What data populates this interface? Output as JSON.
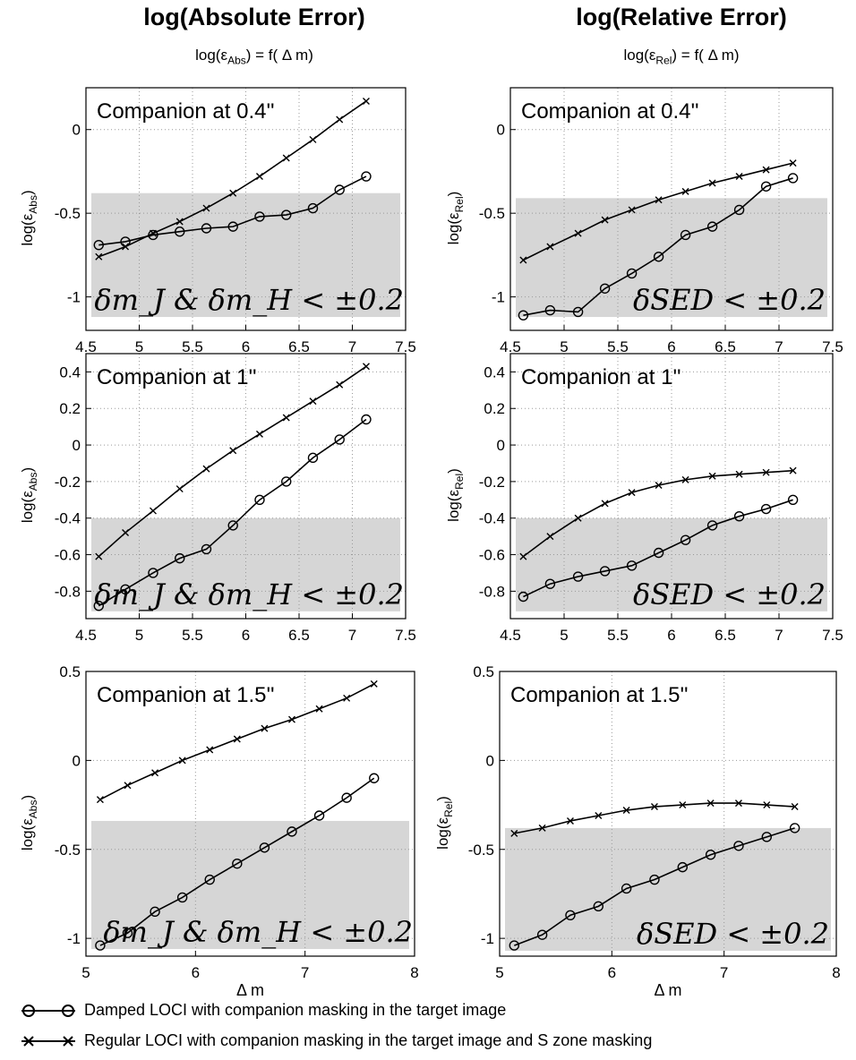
{
  "titles": {
    "left": "log(Absolute Error)",
    "right": "log(Relative Error)",
    "left_formula_pre": "log(ε",
    "left_formula_sub": "Abs",
    "left_formula_post": ") = f( Δ m)",
    "right_formula_pre": "log(ε",
    "right_formula_sub": "Rel",
    "right_formula_post": ") = f( Δ m)"
  },
  "legend": {
    "circle": "Damped LOCI with companion masking in the target image",
    "cross": "Regular LOCI with companion masking in the target image and S zone masking"
  },
  "colors": {
    "band": "#d6d6d6",
    "line": "#000000",
    "grid": "#9a9a9a"
  },
  "chart_data": [
    {
      "type": "line",
      "title": "Companion at 0.4''",
      "ylabel_pre": "log(ε",
      "ylabel_sub": "Abs",
      "ylabel_post": ")",
      "xlabel": "",
      "band_label": "δm_J & δm_H < ±0.2",
      "xlim": [
        4.5,
        7.5
      ],
      "ylim": [
        -1.2,
        0.25
      ],
      "xticks": [
        "4.5",
        "5",
        "5.5",
        "6",
        "6.5",
        "7",
        "7.5"
      ],
      "yticks": [
        "-1",
        "-0.5",
        "0"
      ],
      "band": [
        -1.12,
        -0.38
      ],
      "x": [
        4.62,
        4.87,
        5.13,
        5.38,
        5.63,
        5.88,
        6.13,
        6.38,
        6.63,
        6.88,
        7.13
      ],
      "series": [
        {
          "name": "Regular LOCI",
          "marker": "x",
          "values": [
            -0.76,
            -0.7,
            -0.62,
            -0.55,
            -0.47,
            -0.38,
            -0.28,
            -0.17,
            -0.06,
            0.06,
            0.17
          ]
        },
        {
          "name": "Damped LOCI",
          "marker": "o",
          "values": [
            -0.69,
            -0.67,
            -0.63,
            -0.61,
            -0.59,
            -0.58,
            -0.52,
            -0.51,
            -0.47,
            -0.36,
            -0.28
          ]
        }
      ]
    },
    {
      "type": "line",
      "title": "Companion at 0.4''",
      "ylabel_pre": "log(ε",
      "ylabel_sub": "Rel",
      "ylabel_post": ")",
      "xlabel": "",
      "band_label": "δSED < ±0.2",
      "xlim": [
        4.5,
        7.5
      ],
      "ylim": [
        -1.2,
        0.25
      ],
      "xticks": [
        "4.5",
        "5",
        "5.5",
        "6",
        "6.5",
        "7",
        "7.5"
      ],
      "yticks": [
        "-1",
        "-0.5",
        "0"
      ],
      "band": [
        -1.12,
        -0.41
      ],
      "x": [
        4.62,
        4.87,
        5.13,
        5.38,
        5.63,
        5.88,
        6.13,
        6.38,
        6.63,
        6.88,
        7.13
      ],
      "series": [
        {
          "name": "Regular LOCI",
          "marker": "x",
          "values": [
            -0.78,
            -0.7,
            -0.62,
            -0.54,
            -0.48,
            -0.42,
            -0.37,
            -0.32,
            -0.28,
            -0.24,
            -0.2
          ]
        },
        {
          "name": "Damped LOCI",
          "marker": "o",
          "values": [
            -1.11,
            -1.08,
            -1.09,
            -0.95,
            -0.86,
            -0.76,
            -0.63,
            -0.58,
            -0.48,
            -0.34,
            -0.29
          ]
        }
      ]
    },
    {
      "type": "line",
      "title": "Companion at 1''",
      "ylabel_pre": "log(ε",
      "ylabel_sub": "Abs",
      "ylabel_post": ")",
      "xlabel": "",
      "band_label": "δm_J & δm_H < ±0.2",
      "xlim": [
        4.5,
        7.5
      ],
      "ylim": [
        -0.95,
        0.5
      ],
      "xticks": [
        "4.5",
        "5",
        "5.5",
        "6",
        "6.5",
        "7",
        "7.5"
      ],
      "yticks": [
        "-0.8",
        "-0.6",
        "-0.4",
        "-0.2",
        "0",
        "0.2",
        "0.4"
      ],
      "band": [
        -0.91,
        -0.4
      ],
      "x": [
        4.62,
        4.87,
        5.13,
        5.38,
        5.63,
        5.88,
        6.13,
        6.38,
        6.63,
        6.88,
        7.13
      ],
      "series": [
        {
          "name": "Regular LOCI",
          "marker": "x",
          "values": [
            -0.61,
            -0.48,
            -0.36,
            -0.24,
            -0.13,
            -0.03,
            0.06,
            0.15,
            0.24,
            0.33,
            0.43
          ]
        },
        {
          "name": "Damped LOCI",
          "marker": "o",
          "values": [
            -0.88,
            -0.79,
            -0.7,
            -0.62,
            -0.57,
            -0.44,
            -0.3,
            -0.2,
            -0.07,
            0.03,
            0.14
          ]
        }
      ]
    },
    {
      "type": "line",
      "title": "Companion at 1''",
      "ylabel_pre": "log(ε",
      "ylabel_sub": "Rel",
      "ylabel_post": ")",
      "xlabel": "",
      "band_label": "δSED < ±0.2",
      "xlim": [
        4.5,
        7.5
      ],
      "ylim": [
        -0.95,
        0.5
      ],
      "xticks": [
        "4.5",
        "5",
        "5.5",
        "6",
        "6.5",
        "7",
        "7.5"
      ],
      "yticks": [
        "-0.8",
        "-0.6",
        "-0.4",
        "-0.2",
        "0",
        "0.2",
        "0.4"
      ],
      "band": [
        -0.91,
        -0.4
      ],
      "x": [
        4.62,
        4.87,
        5.13,
        5.38,
        5.63,
        5.88,
        6.13,
        6.38,
        6.63,
        6.88,
        7.13
      ],
      "series": [
        {
          "name": "Regular LOCI",
          "marker": "x",
          "values": [
            -0.61,
            -0.5,
            -0.4,
            -0.32,
            -0.26,
            -0.22,
            -0.19,
            -0.17,
            -0.16,
            -0.15,
            -0.14
          ]
        },
        {
          "name": "Damped LOCI",
          "marker": "o",
          "values": [
            -0.83,
            -0.76,
            -0.72,
            -0.69,
            -0.66,
            -0.59,
            -0.52,
            -0.44,
            -0.39,
            -0.35,
            -0.3
          ]
        }
      ]
    },
    {
      "type": "line",
      "title": "Companion at 1.5''",
      "ylabel_pre": "log(ε",
      "ylabel_sub": "Abs",
      "ylabel_post": ")",
      "xlabel": "Δ m",
      "band_label": "δm_J & δm_H < ±0.2",
      "xlim": [
        5,
        8
      ],
      "ylim": [
        -1.1,
        0.5
      ],
      "xticks": [
        "5",
        "6",
        "7",
        "8"
      ],
      "yticks": [
        "-1",
        "-0.5",
        "0",
        "0.5"
      ],
      "band": [
        -1.06,
        -0.34
      ],
      "x": [
        5.13,
        5.38,
        5.63,
        5.88,
        6.13,
        6.38,
        6.63,
        6.88,
        7.13,
        7.38,
        7.63
      ],
      "series": [
        {
          "name": "Regular LOCI",
          "marker": "x",
          "values": [
            -0.22,
            -0.14,
            -0.07,
            0.0,
            0.06,
            0.12,
            0.18,
            0.23,
            0.29,
            0.35,
            0.43
          ]
        },
        {
          "name": "Damped LOCI",
          "marker": "o",
          "values": [
            -1.04,
            -0.97,
            -0.85,
            -0.77,
            -0.67,
            -0.58,
            -0.49,
            -0.4,
            -0.31,
            -0.21,
            -0.1
          ]
        }
      ]
    },
    {
      "type": "line",
      "title": "Companion at 1.5''",
      "ylabel_pre": "log(ε",
      "ylabel_sub": "Rel",
      "ylabel_post": ")",
      "xlabel": "Δ m",
      "band_label": "δSED < ±0.2",
      "xlim": [
        5,
        8
      ],
      "ylim": [
        -1.1,
        0.5
      ],
      "xticks": [
        "5",
        "6",
        "7",
        "8"
      ],
      "yticks": [
        "-1",
        "-0.5",
        "0",
        "0.5"
      ],
      "band": [
        -1.07,
        -0.38
      ],
      "x": [
        5.13,
        5.38,
        5.63,
        5.88,
        6.13,
        6.38,
        6.63,
        6.88,
        7.13,
        7.38,
        7.63
      ],
      "series": [
        {
          "name": "Regular LOCI",
          "marker": "x",
          "values": [
            -0.41,
            -0.38,
            -0.34,
            -0.31,
            -0.28,
            -0.26,
            -0.25,
            -0.24,
            -0.24,
            -0.25,
            -0.26
          ]
        },
        {
          "name": "Damped LOCI",
          "marker": "o",
          "values": [
            -1.04,
            -0.98,
            -0.87,
            -0.82,
            -0.72,
            -0.67,
            -0.6,
            -0.53,
            -0.48,
            -0.43,
            -0.38
          ]
        }
      ]
    }
  ]
}
